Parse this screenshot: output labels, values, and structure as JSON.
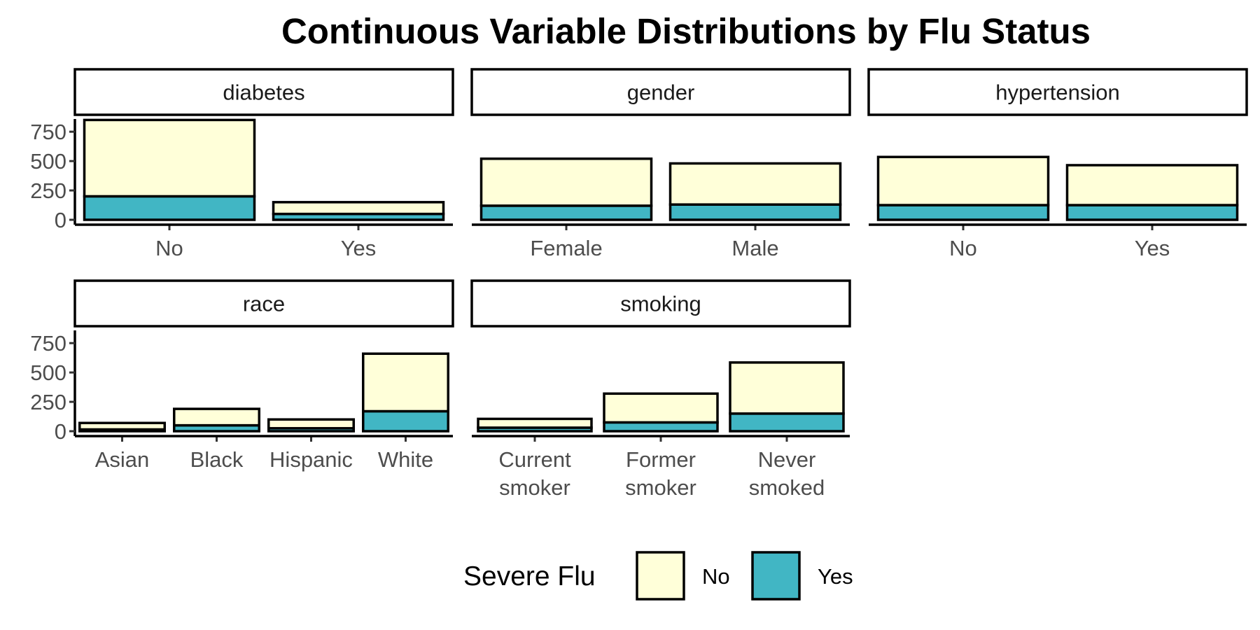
{
  "chart_data": {
    "type": "bar",
    "stacked": true,
    "faceted": true,
    "title": "Continuous Variable Distributions by Flu Status",
    "ylim": [
      0,
      900
    ],
    "y_ticks": [
      0,
      250,
      500,
      750
    ],
    "grid": false,
    "legend": {
      "title": "Severe Flu",
      "position": "bottom",
      "entries": [
        {
          "label": "No",
          "color": "#FFFFD9"
        },
        {
          "label": "Yes",
          "color": "#41B6C4"
        }
      ]
    },
    "series_colors": {
      "No": "#FFFFD9",
      "Yes": "#41B6C4"
    },
    "facets": [
      {
        "name": "diabetes",
        "categories": [
          "No",
          "Yes"
        ],
        "series": [
          {
            "name": "Yes",
            "values": [
              200,
              50
            ]
          },
          {
            "name": "No",
            "values": [
              650,
              100
            ]
          }
        ]
      },
      {
        "name": "gender",
        "categories": [
          "Female",
          "Male"
        ],
        "series": [
          {
            "name": "Yes",
            "values": [
              120,
              130
            ]
          },
          {
            "name": "No",
            "values": [
              400,
              350
            ]
          }
        ]
      },
      {
        "name": "hypertension",
        "categories": [
          "No",
          "Yes"
        ],
        "series": [
          {
            "name": "Yes",
            "values": [
              125,
              125
            ]
          },
          {
            "name": "No",
            "values": [
              410,
              340
            ]
          }
        ]
      },
      {
        "name": "race",
        "categories": [
          "Asian",
          "Black",
          "Hispanic",
          "White"
        ],
        "series": [
          {
            "name": "Yes",
            "values": [
              15,
              50,
              25,
              170
            ]
          },
          {
            "name": "No",
            "values": [
              55,
              140,
              75,
              490
            ]
          }
        ]
      },
      {
        "name": "smoking",
        "categories": [
          "Current\nsmoker",
          "Former\nsmoker",
          "Never\nsmoked"
        ],
        "series": [
          {
            "name": "Yes",
            "values": [
              30,
              75,
              150
            ]
          },
          {
            "name": "No",
            "values": [
              75,
              245,
              435
            ]
          }
        ]
      }
    ]
  }
}
